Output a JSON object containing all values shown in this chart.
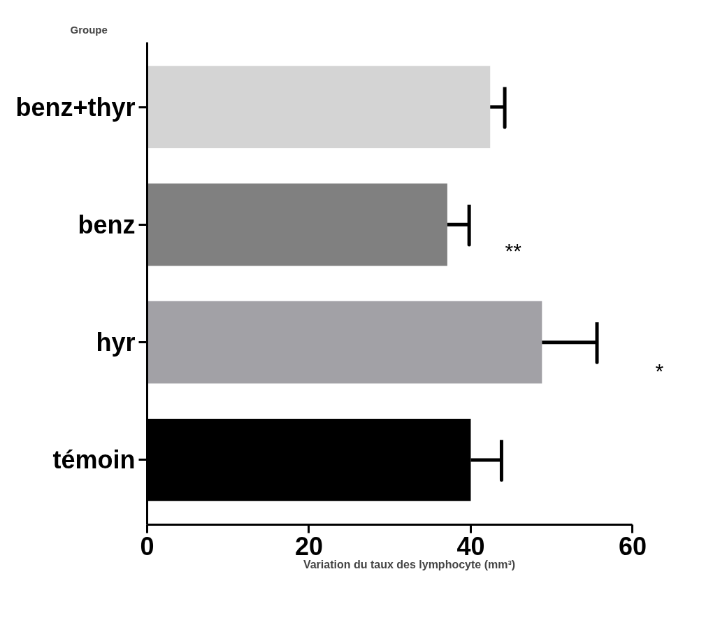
{
  "chart_data": {
    "type": "bar",
    "orientation": "horizontal",
    "ylabel": "Groupe",
    "xlabel": "Variation du taux des lymphocyte (mm³)",
    "categories": [
      "benz+thyr",
      "benz",
      "hyr",
      "témoin"
    ],
    "values": [
      42.4,
      37.1,
      48.8,
      40.0
    ],
    "colors": [
      "#d4d4d4",
      "#808080",
      "#a2a1a6",
      "#000000"
    ],
    "errors": [
      [
        42.4,
        44.2
      ],
      [
        37.1,
        39.8
      ],
      [
        48.8,
        55.6
      ],
      [
        40.0,
        43.8
      ]
    ],
    "xlim": [
      0,
      60
    ],
    "xticks": [
      0,
      20,
      40,
      60
    ],
    "grid": false,
    "annotations": [
      "**",
      "*"
    ]
  }
}
